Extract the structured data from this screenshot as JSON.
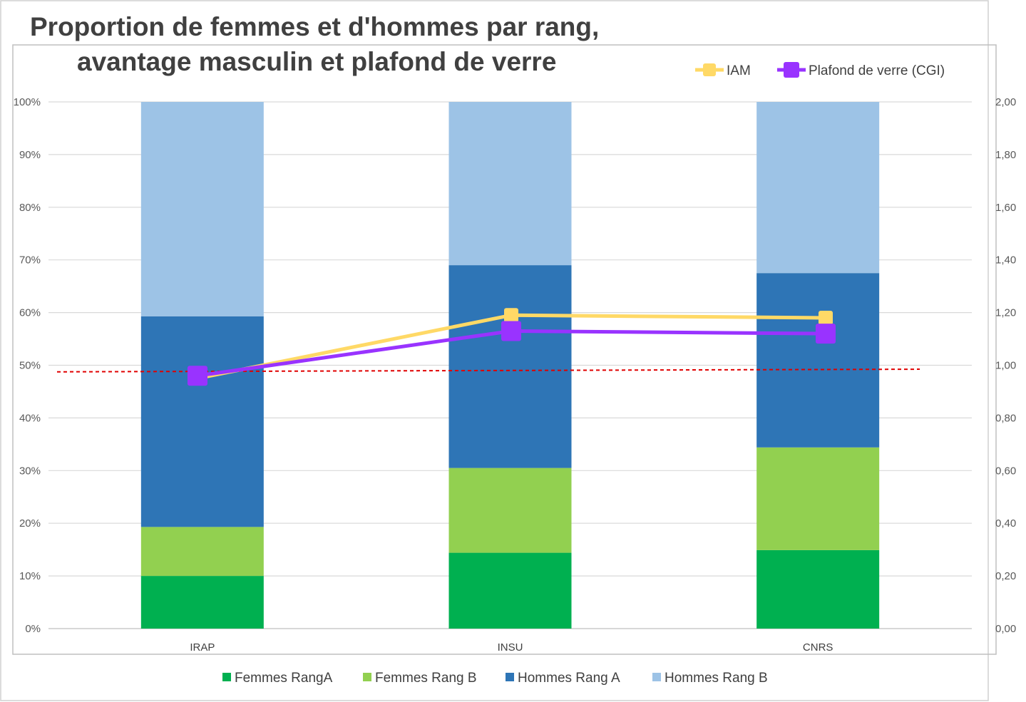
{
  "chart_data": {
    "type": "bar",
    "stacked": true,
    "title_line1": "Proportion de femmes et d'hommes par rang,",
    "title_line2": "avantage masculin et plafond de verre",
    "xlabel": "",
    "ylabel": "",
    "categories": [
      "IRAP",
      "INSU",
      "CNRS"
    ],
    "ylim": [
      0,
      100
    ],
    "y_ticks": [
      "0%",
      "10%",
      "20%",
      "30%",
      "40%",
      "50%",
      "60%",
      "70%",
      "80%",
      "90%",
      "100%"
    ],
    "y2lim": [
      0,
      2
    ],
    "y2_ticks": [
      "0,00",
      "0,20",
      "0,40",
      "0,60",
      "0,80",
      "1,00",
      "1,20",
      "1,40",
      "1,60",
      "1,80",
      "2,00"
    ],
    "grid": true,
    "series": [
      {
        "name": "Femmes RangA",
        "color": "#00b050",
        "values": [
          10,
          14.4,
          14.9
        ]
      },
      {
        "name": "Femmes Rang B",
        "color": "#92d050",
        "values": [
          9.3,
          16.1,
          19.5
        ]
      },
      {
        "name": "Hommes Rang A",
        "color": "#2e75b6",
        "values": [
          40,
          38.5,
          33.1
        ]
      },
      {
        "name": "Hommes Rang B",
        "color": "#9dc3e6",
        "values": [
          40.7,
          31,
          32.5
        ]
      }
    ],
    "line_series": [
      {
        "name": "IAM",
        "color": "#ffd966",
        "axis": "right",
        "marker": "square",
        "values": [
          0.95,
          1.19,
          1.18
        ]
      },
      {
        "name": "Plafond de verre (CGI)",
        "color": "#9933ff",
        "axis": "right",
        "marker": "square",
        "values": [
          0.96,
          1.13,
          1.12
        ]
      }
    ],
    "reference_line": {
      "color": "#e00000",
      "axis": "right",
      "from_value": 0.975,
      "to_value": 0.985
    },
    "legend_bottom": [
      "Femmes RangA",
      "Femmes Rang B",
      "Hommes Rang A",
      "Hommes Rang B"
    ],
    "legend_top": [
      "IAM",
      "Plafond de verre (CGI)"
    ],
    "legend_placement_bars": "bottom",
    "legend_placement_lines": "top-right"
  }
}
